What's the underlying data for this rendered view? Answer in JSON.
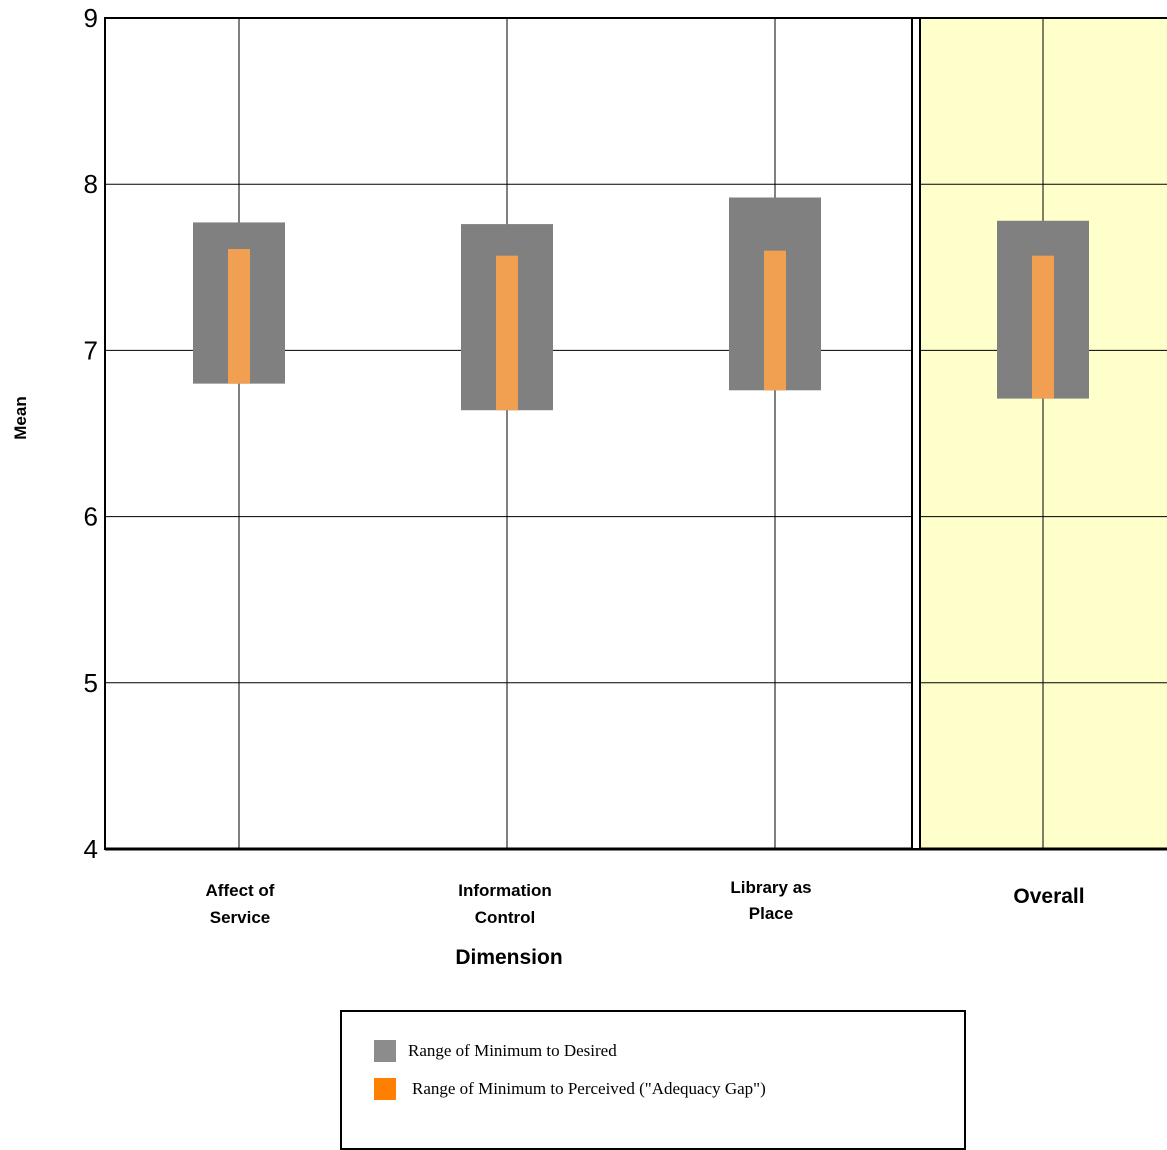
{
  "chart_data": {
    "type": "range-bar",
    "xlabel": "Dimension",
    "ylabel": "Mean",
    "ylim": [
      4,
      9
    ],
    "yticks": [
      "4",
      "5",
      "6",
      "7",
      "8",
      "9"
    ],
    "grid": true,
    "categories": [
      {
        "label": [
          "Affect of",
          "Service"
        ],
        "highlight": false
      },
      {
        "label": [
          "Information",
          "Control"
        ],
        "highlight": false
      },
      {
        "label": [
          "Library as",
          "Place"
        ],
        "highlight": false
      },
      {
        "label": [
          "Overall"
        ],
        "highlight": true
      }
    ],
    "series": [
      {
        "name": "Range of Minimum to Desired",
        "color": "#808080",
        "ranges": [
          [
            6.8,
            7.77
          ],
          [
            6.64,
            7.76
          ],
          [
            6.76,
            7.92
          ],
          [
            6.71,
            7.78
          ]
        ]
      },
      {
        "name": "Range of Minimum to Perceived (\"Adequacy Gap\")",
        "color": "#f0a050",
        "ranges": [
          [
            6.8,
            7.61
          ],
          [
            6.64,
            7.57
          ],
          [
            6.76,
            7.6
          ],
          [
            6.71,
            7.57
          ]
        ]
      }
    ],
    "highlight_color": "#ffffcc"
  },
  "legend": {
    "items": [
      {
        "label": "Range of Minimum to Desired",
        "color": "#808080"
      },
      {
        "label": "Range of Minimum to Perceived (\"Adequacy Gap\")",
        "color": "#f07f0a"
      }
    ]
  }
}
